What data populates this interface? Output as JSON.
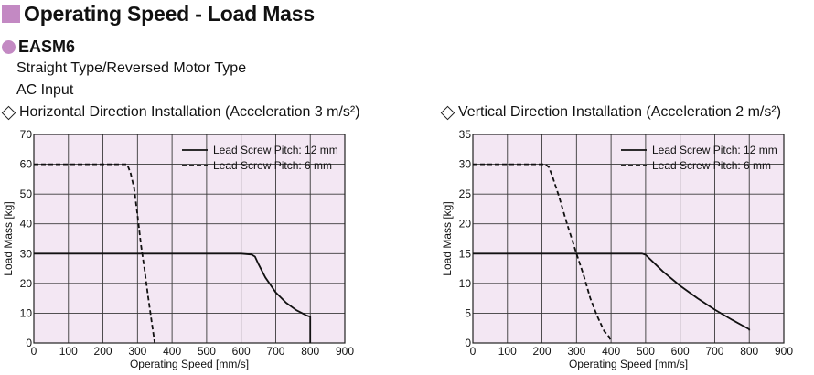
{
  "page": {
    "title": "Operating Speed - Load Mass",
    "model": "EASM6",
    "subtitle_1": "Straight Type/Reversed Motor Type",
    "subtitle_2": "AC Input",
    "accent_color": "#c389c3"
  },
  "chart_data": [
    {
      "type": "line",
      "title": "Horizontal Direction Installation (Acceleration 3 m/s²)",
      "xlabel": "Operating Speed [mm/s]",
      "ylabel": "Load Mass [kg]",
      "xlim": [
        0,
        900
      ],
      "ylim": [
        0,
        70
      ],
      "xticks": [
        0,
        100,
        200,
        300,
        400,
        500,
        600,
        700,
        800,
        900
      ],
      "yticks": [
        0,
        10,
        20,
        30,
        40,
        50,
        60,
        70
      ],
      "grid": true,
      "legend": "top-right",
      "plot_bg": "#f3e7f3",
      "series": [
        {
          "name": "Lead Screw Pitch: 12 mm",
          "style": "solid",
          "x": [
            0,
            600,
            630,
            640,
            650,
            670,
            700,
            730,
            760,
            780,
            790,
            800,
            800
          ],
          "y": [
            30,
            30,
            29.7,
            29,
            26.5,
            22,
            17,
            13.5,
            11,
            9.8,
            9.2,
            8.8,
            0
          ]
        },
        {
          "name": "Lead Screw Pitch: 6 mm",
          "style": "dashed",
          "x": [
            0,
            270,
            280,
            290,
            300,
            310,
            320,
            330,
            340,
            350
          ],
          "y": [
            60,
            60,
            57,
            52,
            43,
            33,
            25,
            16,
            8,
            0
          ]
        }
      ]
    },
    {
      "type": "line",
      "title": "Vertical Direction Installation (Acceleration 2 m/s²)",
      "xlabel": "Operating Speed [mm/s]",
      "ylabel": "Load Mass [kg]",
      "xlim": [
        0,
        900
      ],
      "ylim": [
        0,
        35
      ],
      "xticks": [
        0,
        100,
        200,
        300,
        400,
        500,
        600,
        700,
        800,
        900
      ],
      "yticks": [
        0,
        5,
        10,
        15,
        20,
        25,
        30,
        35
      ],
      "grid": true,
      "legend": "top-right",
      "plot_bg": "#f3e7f3",
      "series": [
        {
          "name": "Lead Screw Pitch: 12 mm",
          "style": "solid",
          "x": [
            0,
            490,
            500,
            520,
            550,
            600,
            650,
            700,
            750,
            800,
            800
          ],
          "y": [
            15,
            15,
            14.8,
            13.7,
            12,
            9.6,
            7.5,
            5.6,
            3.9,
            2.3,
            2.1
          ]
        },
        {
          "name": "Lead Screw Pitch: 6 mm",
          "style": "dashed",
          "x": [
            0,
            210,
            220,
            230,
            250,
            270,
            300,
            320,
            340,
            360,
            380,
            395,
            400
          ],
          "y": [
            30,
            30,
            29.5,
            28,
            24.5,
            20.5,
            15,
            11.5,
            7.5,
            4.5,
            2,
            1,
            0.2
          ]
        }
      ]
    }
  ]
}
